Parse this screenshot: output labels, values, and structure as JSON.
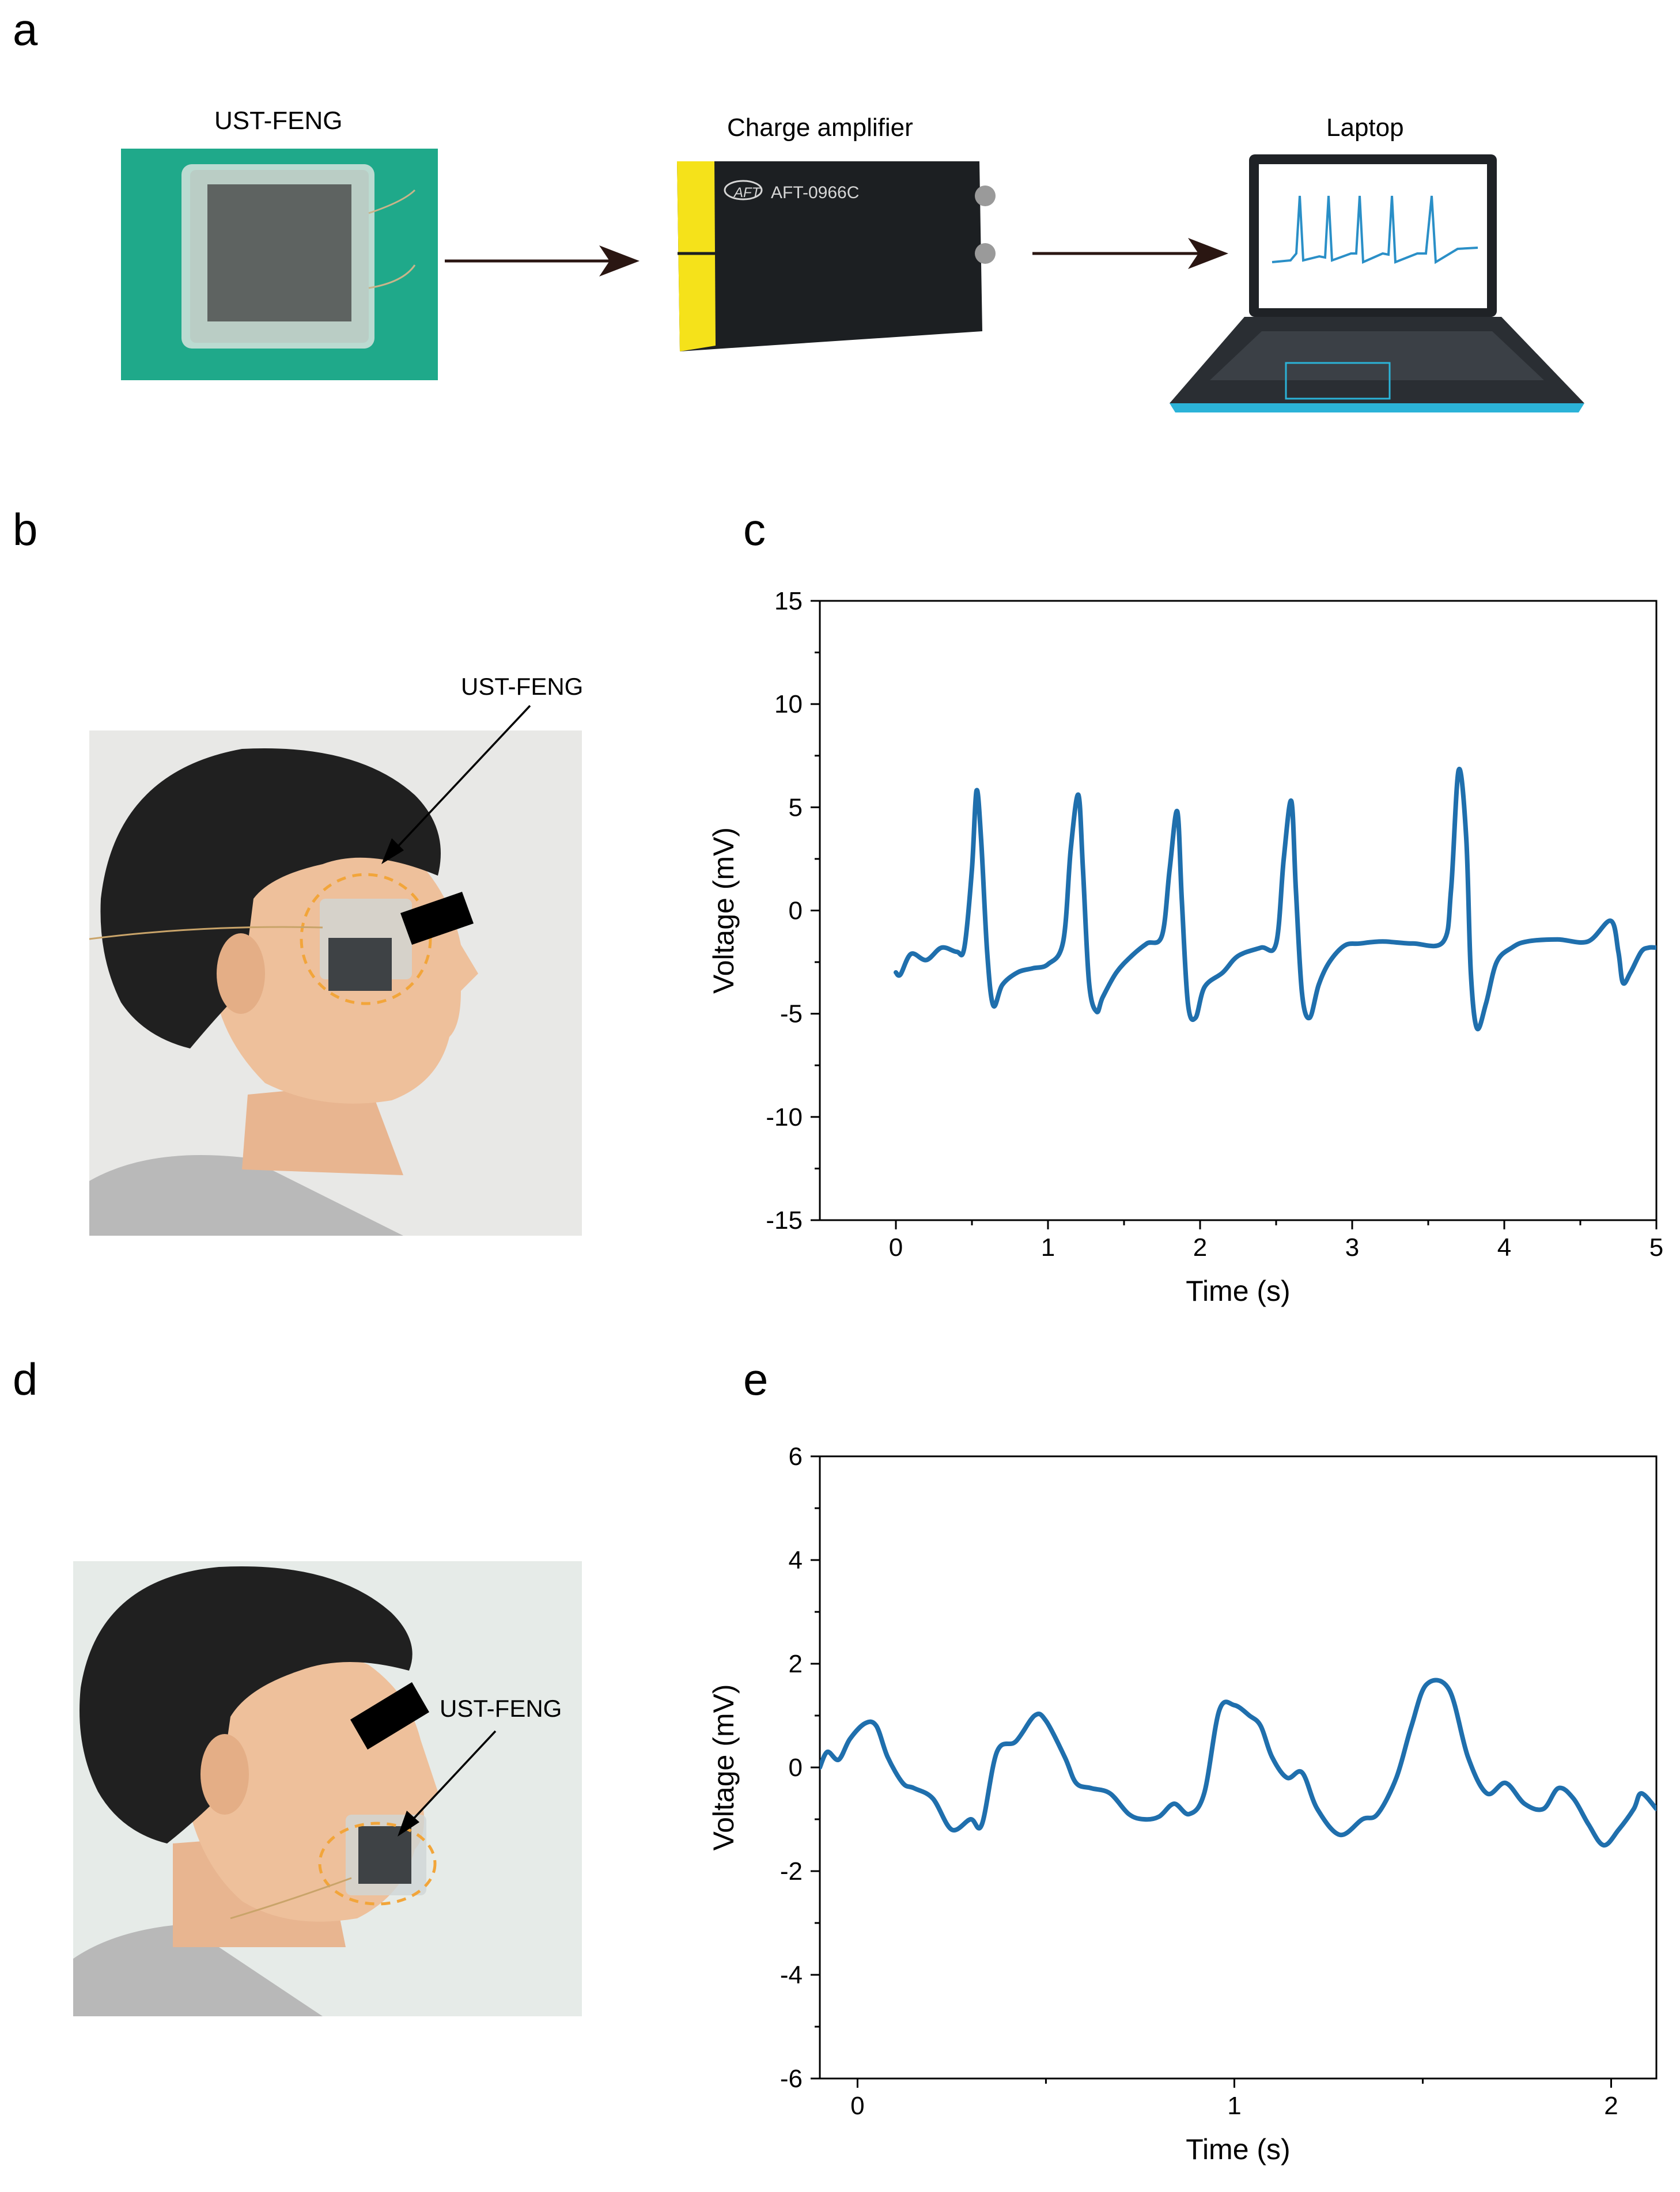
{
  "panels": {
    "a": "a",
    "b": "b",
    "c": "c",
    "d": "d",
    "e": "e"
  },
  "panel_a": {
    "device_label": "UST-FENG",
    "amplifier_label": "Charge amplifier",
    "amplifier_model": "AFT-0966C",
    "amplifier_logo": "AFT",
    "laptop_label": "Laptop"
  },
  "panel_b": {
    "callout": "UST-FENG"
  },
  "panel_d": {
    "callout": "UST-FENG"
  },
  "colors": {
    "series": "#1f6fad",
    "board_green": "#1fa98a",
    "device_yellow": "#f5e21a",
    "device_body": "#1c1f22",
    "ring_orange": "#f2a53a"
  },
  "chart_data": [
    {
      "id": "c",
      "type": "line",
      "xlabel": "Time (s)",
      "ylabel": "Voltage (mV)",
      "xlim": [
        -0.5,
        5
      ],
      "ylim": [
        -15,
        15
      ],
      "xticks": [
        0,
        1,
        2,
        3,
        4,
        5
      ],
      "yticks": [
        -15,
        -10,
        -5,
        0,
        5,
        10,
        15
      ],
      "series": [
        {
          "x": [
            0,
            0.03,
            0.1,
            0.2,
            0.3,
            0.4,
            0.45,
            0.5,
            0.53,
            0.56,
            0.6,
            0.64,
            0.7,
            0.8,
            0.9,
            1.0,
            1.1,
            1.15,
            1.2,
            1.23,
            1.27,
            1.32,
            1.36,
            1.45,
            1.55,
            1.65,
            1.75,
            1.8,
            1.85,
            1.88,
            1.92,
            1.97,
            2.03,
            2.15,
            2.25,
            2.4,
            2.5,
            2.55,
            2.6,
            2.63,
            2.67,
            2.72,
            2.78,
            2.85,
            2.95,
            3.05,
            3.2,
            3.4,
            3.6,
            3.65,
            3.7,
            3.75,
            3.78,
            3.82,
            3.88,
            3.95,
            4.05,
            4.15,
            4.35,
            4.55,
            4.7,
            4.75,
            4.78,
            4.83,
            4.9,
            4.95,
            5.0
          ],
          "y": [
            -3,
            -3.1,
            -2.1,
            -2.4,
            -1.8,
            -2.0,
            -1.8,
            2.0,
            5.8,
            3.5,
            -2.0,
            -4.6,
            -3.6,
            -3.0,
            -2.8,
            -2.6,
            -1.5,
            3.0,
            5.6,
            2.0,
            -3.5,
            -4.9,
            -4.2,
            -3.0,
            -2.2,
            -1.6,
            -1.2,
            2.0,
            4.8,
            0.5,
            -4.5,
            -5.2,
            -3.7,
            -3.0,
            -2.2,
            -1.8,
            -1.6,
            2.5,
            5.3,
            1.0,
            -4.0,
            -5.2,
            -3.6,
            -2.5,
            -1.7,
            -1.6,
            -1.5,
            -1.6,
            -1.5,
            1.0,
            6.8,
            3.5,
            -3.0,
            -5.7,
            -4.5,
            -2.5,
            -1.8,
            -1.5,
            -1.4,
            -1.5,
            -0.5,
            -2.0,
            -3.5,
            -3.0,
            -2.0,
            -1.8,
            -1.8
          ]
        }
      ]
    },
    {
      "id": "e",
      "type": "line",
      "xlabel": "Time (s)",
      "ylabel": "Voltage (mV)",
      "xlim": [
        -0.1,
        2.12
      ],
      "ylim": [
        -6,
        6
      ],
      "xticks": [
        0,
        1,
        2
      ],
      "yticks": [
        -6,
        -4,
        -2,
        0,
        2,
        4,
        6
      ],
      "series": [
        {
          "x": [
            -0.1,
            -0.08,
            -0.05,
            -0.02,
            0.02,
            0.05,
            0.08,
            0.12,
            0.15,
            0.2,
            0.25,
            0.3,
            0.33,
            0.37,
            0.42,
            0.47,
            0.5,
            0.55,
            0.58,
            0.62,
            0.67,
            0.72,
            0.76,
            0.8,
            0.84,
            0.88,
            0.92,
            0.96,
            1.0,
            1.04,
            1.07,
            1.1,
            1.14,
            1.18,
            1.22,
            1.28,
            1.34,
            1.38,
            1.43,
            1.47,
            1.51,
            1.57,
            1.62,
            1.67,
            1.72,
            1.77,
            1.82,
            1.86,
            1.9,
            1.94,
            1.98,
            2.02,
            2.06,
            2.08,
            2.12
          ],
          "y": [
            0,
            0.3,
            0.15,
            0.55,
            0.85,
            0.8,
            0.2,
            -0.3,
            -0.4,
            -0.6,
            -1.2,
            -1.0,
            -1.1,
            0.3,
            0.5,
            1.0,
            0.9,
            0.2,
            -0.3,
            -0.4,
            -0.5,
            -0.9,
            -1.0,
            -0.95,
            -0.7,
            -0.9,
            -0.5,
            1.1,
            1.2,
            1.0,
            0.8,
            0.2,
            -0.2,
            -0.1,
            -0.8,
            -1.3,
            -1.0,
            -0.9,
            -0.2,
            0.8,
            1.6,
            1.5,
            0.2,
            -0.5,
            -0.3,
            -0.7,
            -0.8,
            -0.4,
            -0.6,
            -1.1,
            -1.5,
            -1.2,
            -0.8,
            -0.5,
            -0.8
          ]
        }
      ]
    }
  ]
}
